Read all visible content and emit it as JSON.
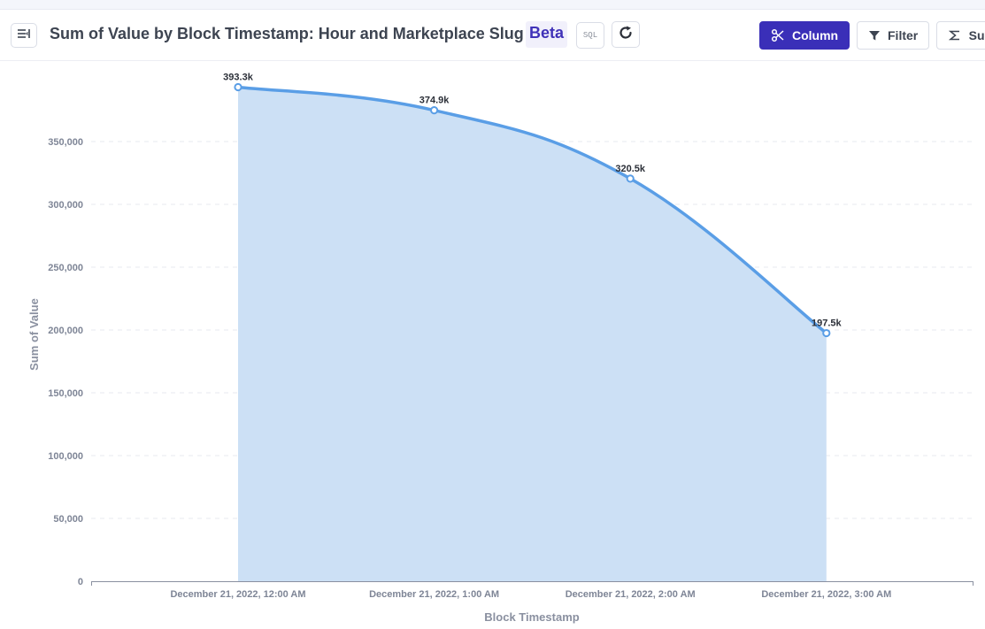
{
  "header": {
    "title": "Sum of Value by Block Timestamp: Hour and Marketplace Slug",
    "badge": "Beta",
    "sql_label": "SQL",
    "buttons": {
      "column": "Column",
      "filter": "Filter",
      "summarize": "Sum"
    }
  },
  "icons": {
    "sidebar_toggle": "sidebar-toggle-icon",
    "refresh": "refresh-icon",
    "column": "scissors-icon",
    "filter": "funnel-icon",
    "summarize": "sigma-icon"
  },
  "colors": {
    "accent": "#3a2fb8",
    "line": "#5a9ee6",
    "area": "#cce0f5"
  },
  "chart_data": {
    "type": "area",
    "categories": [
      "December 21, 2022, 12:00 AM",
      "December 21, 2022, 1:00 AM",
      "December 21, 2022, 2:00 AM",
      "December 21, 2022, 3:00 AM"
    ],
    "values": [
      393300,
      374900,
      320500,
      197500
    ],
    "data_labels": [
      "393.3k",
      "374.9k",
      "320.5k",
      "197.5k"
    ],
    "xlabel": "Block Timestamp",
    "ylabel": "Sum of Value",
    "ylim": [
      0,
      400000
    ],
    "yticks": [
      0,
      50000,
      100000,
      150000,
      200000,
      250000,
      300000,
      350000
    ],
    "ytick_labels": [
      "0",
      "50,000",
      "100,000",
      "150,000",
      "200,000",
      "250,000",
      "300,000",
      "350,000"
    ],
    "grid": true,
    "legend": "none"
  }
}
